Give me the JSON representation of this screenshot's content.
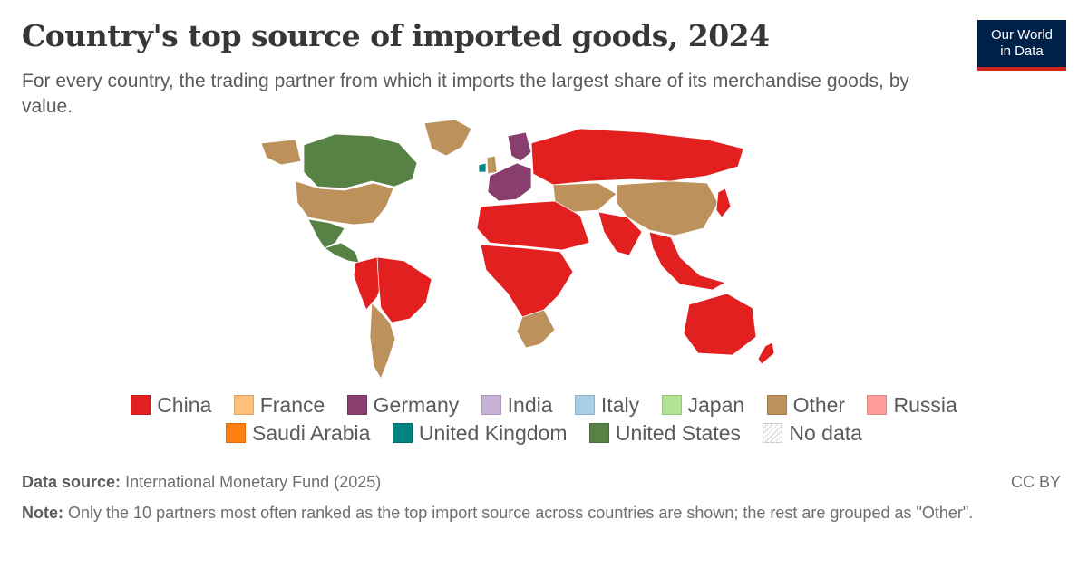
{
  "header": {
    "title": "Country's top source of imported goods, 2024",
    "subtitle": "For every country, the trading partner from which it imports the largest share of its merchandise goods, by value."
  },
  "logo": {
    "line1": "Our World",
    "line2": "in Data"
  },
  "legend": {
    "row1": [
      {
        "label": "China",
        "color": "#e1201f"
      },
      {
        "label": "France",
        "color": "#ffc17a"
      },
      {
        "label": "Germany",
        "color": "#883f6e"
      },
      {
        "label": "India",
        "color": "#c9b2d8"
      },
      {
        "label": "Italy",
        "color": "#a8cfe6"
      },
      {
        "label": "Japan",
        "color": "#b3e395"
      },
      {
        "label": "Other",
        "color": "#bd915b"
      },
      {
        "label": "Russia",
        "color": "#ff9d9b"
      }
    ],
    "row2": [
      {
        "label": "Saudi Arabia",
        "color": "#ff7f0f"
      },
      {
        "label": "United Kingdom",
        "color": "#008383"
      },
      {
        "label": "United States",
        "color": "#578145"
      },
      {
        "label": "No data",
        "color": "hatched"
      }
    ]
  },
  "footer": {
    "source_label": "Data source:",
    "source_text": "International Monetary Fund (2025)",
    "license": "CC BY",
    "note_label": "Note:",
    "note_text": "Only the 10 partners most often ranked as the top import source across countries are shown; the rest are grouped as \"Other\"."
  },
  "map_regions": [
    {
      "name": "canada",
      "partner": "United States"
    },
    {
      "name": "usa",
      "partner": "Other"
    },
    {
      "name": "mexico",
      "partner": "United States"
    },
    {
      "name": "central-america",
      "partner": "United States"
    },
    {
      "name": "greenland",
      "partner": "Other"
    },
    {
      "name": "brazil",
      "partner": "China"
    },
    {
      "name": "andes",
      "partner": "China"
    },
    {
      "name": "southern-cone",
      "partner": "Other"
    },
    {
      "name": "uk",
      "partner": "Other"
    },
    {
      "name": "ireland",
      "partner": "United Kingdom"
    },
    {
      "name": "central-europe",
      "partner": "Germany"
    },
    {
      "name": "russia",
      "partner": "China"
    },
    {
      "name": "north-africa-middle-east",
      "partner": "China"
    },
    {
      "name": "central-asia",
      "partner": "Other"
    },
    {
      "name": "south-asia",
      "partner": "China"
    },
    {
      "name": "china",
      "partner": "Other"
    },
    {
      "name": "southeast-asia",
      "partner": "China"
    },
    {
      "name": "africa",
      "partner": "China"
    },
    {
      "name": "southern-africa",
      "partner": "Other"
    },
    {
      "name": "australia",
      "partner": "China"
    },
    {
      "name": "new-zealand",
      "partner": "China"
    }
  ]
}
